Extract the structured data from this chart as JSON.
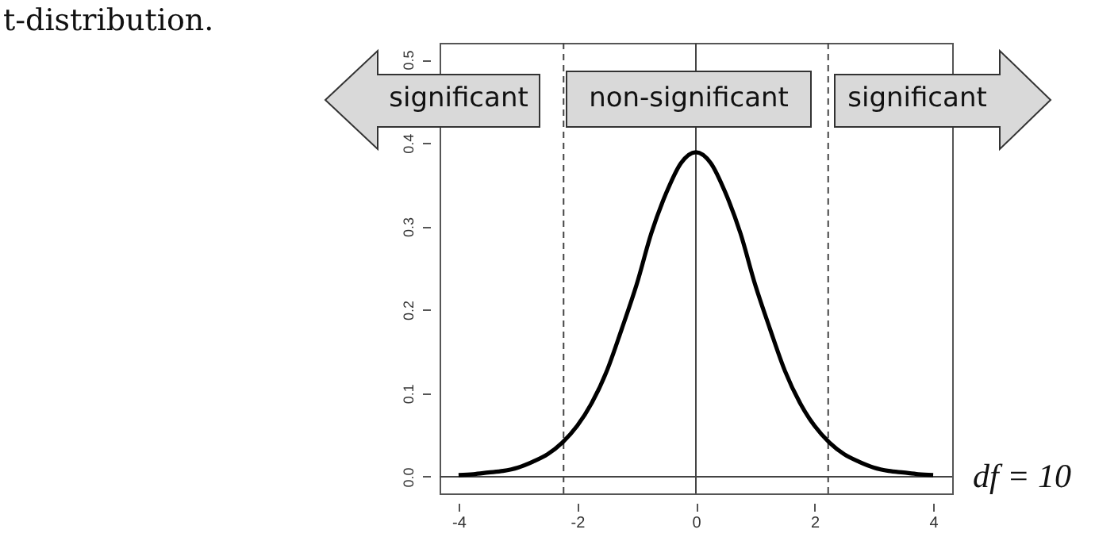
{
  "chart_data": {
    "type": "line",
    "title": "t-distribution.",
    "annotations": [
      "significant",
      "non-significant",
      "significant",
      "df = 10"
    ],
    "x": [
      -4,
      -3.75,
      -3.5,
      -3.25,
      -3,
      -2.75,
      -2.5,
      -2.25,
      -2,
      -1.75,
      -1.5,
      -1.25,
      -1,
      -0.75,
      -0.5,
      -0.25,
      0,
      0.25,
      0.5,
      0.75,
      1,
      1.25,
      1.5,
      1.75,
      2,
      2.25,
      2.5,
      2.75,
      3,
      3.25,
      3.5,
      3.75,
      4
    ],
    "series": [
      {
        "color": "#000000",
        "values": [
          0.002,
          0.003,
          0.005,
          0.007,
          0.011,
          0.018,
          0.027,
          0.041,
          0.061,
          0.089,
          0.127,
          0.177,
          0.23,
          0.292,
          0.34,
          0.376,
          0.389,
          0.376,
          0.34,
          0.292,
          0.23,
          0.177,
          0.127,
          0.089,
          0.061,
          0.041,
          0.027,
          0.018,
          0.011,
          0.007,
          0.005,
          0.003,
          0.002
        ]
      }
    ],
    "xlim": [
      -4.32,
      4.32
    ],
    "ylim": [
      -0.02,
      0.52
    ],
    "xticks": [
      -4,
      -2,
      0,
      2,
      4
    ],
    "yticks": [
      {
        "value": 0,
        "label": "0.0"
      },
      0.1,
      0.2,
      0.3,
      0.4,
      0.5
    ],
    "line_style": "solid",
    "marker": "none",
    "grid": false,
    "ref_lines": [
      {
        "axis": "x",
        "value": -2.23,
        "line_style": "dashed",
        "color": "#444444"
      },
      {
        "axis": "x",
        "value": 2.23,
        "line_style": "dashed",
        "color": "#444444"
      },
      {
        "axis": "x",
        "value": 0,
        "line_style": "solid",
        "color": "#444444"
      },
      {
        "axis": "y",
        "value": 0,
        "line_style": "solid",
        "color": "#444444"
      }
    ]
  }
}
